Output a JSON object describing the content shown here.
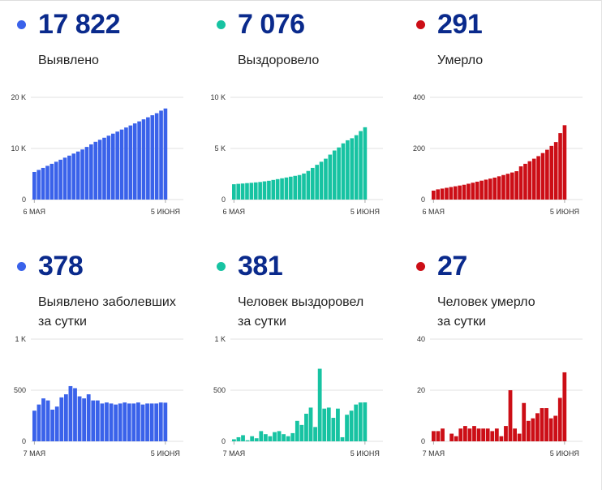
{
  "panels": [
    {
      "value": "17 822",
      "label_lines": [
        "Выявлено"
      ],
      "color": "#3a62ea",
      "chart_data": {
        "type": "bar",
        "title": "",
        "xlabel": "",
        "ylabel": "",
        "ylim": [
          0,
          20000
        ],
        "y_ticks": [
          0,
          10000,
          20000
        ],
        "y_tick_labels": [
          "0",
          "10 K",
          "20 K"
        ],
        "x_tick_labels": [
          "6 МАЯ",
          "5 ИЮНЯ"
        ],
        "x_tick_positions": [
          0,
          30
        ],
        "values": [
          5400,
          5800,
          6200,
          6600,
          7000,
          7400,
          7800,
          8200,
          8600,
          9000,
          9400,
          9800,
          10300,
          10800,
          11300,
          11700,
          12100,
          12500,
          12900,
          13300,
          13700,
          14100,
          14500,
          14900,
          15300,
          15700,
          16100,
          16500,
          16900,
          17400,
          17822
        ]
      }
    },
    {
      "value": "7 076",
      "label_lines": [
        "Выздоровело"
      ],
      "color": "#17c3a2",
      "chart_data": {
        "type": "bar",
        "title": "",
        "xlabel": "",
        "ylabel": "",
        "ylim": [
          0,
          10000
        ],
        "y_ticks": [
          0,
          5000,
          10000
        ],
        "y_tick_labels": [
          "0",
          "5 K",
          "10 K"
        ],
        "x_tick_labels": [
          "6 МАЯ",
          "5 ИЮНЯ"
        ],
        "x_tick_positions": [
          0,
          30
        ],
        "values": [
          1500,
          1540,
          1570,
          1610,
          1640,
          1680,
          1720,
          1780,
          1840,
          1920,
          2000,
          2080,
          2160,
          2240,
          2320,
          2400,
          2550,
          2800,
          3100,
          3400,
          3700,
          4000,
          4400,
          4800,
          5100,
          5500,
          5800,
          6000,
          6300,
          6700,
          7076
        ]
      }
    },
    {
      "value": "291",
      "label_lines": [
        "Умерло"
      ],
      "color": "#cc0e16",
      "chart_data": {
        "type": "bar",
        "title": "",
        "xlabel": "",
        "ylabel": "",
        "ylim": [
          0,
          400
        ],
        "y_ticks": [
          0,
          200,
          400
        ],
        "y_tick_labels": [
          "0",
          "200",
          "400"
        ],
        "x_tick_labels": [
          "6 МАЯ",
          "5 ИЮНЯ"
        ],
        "x_tick_positions": [
          0,
          30
        ],
        "values": [
          35,
          40,
          43,
          46,
          49,
          52,
          55,
          58,
          62,
          66,
          70,
          74,
          78,
          82,
          86,
          91,
          96,
          101,
          106,
          111,
          130,
          140,
          150,
          160,
          170,
          182,
          195,
          210,
          225,
          260,
          291
        ]
      }
    },
    {
      "value": "378",
      "label_lines": [
        "Выявлено заболевших",
        "за сутки"
      ],
      "color": "#3a62ea",
      "chart_data": {
        "type": "bar",
        "title": "",
        "xlabel": "",
        "ylabel": "",
        "ylim": [
          0,
          1000
        ],
        "y_ticks": [
          0,
          500,
          1000
        ],
        "y_tick_labels": [
          "0",
          "500",
          "1 K"
        ],
        "x_tick_labels": [
          "7 МАЯ",
          "5 ИЮНЯ"
        ],
        "x_tick_positions": [
          0,
          29
        ],
        "values": [
          300,
          360,
          420,
          400,
          310,
          340,
          430,
          460,
          540,
          520,
          440,
          420,
          460,
          400,
          400,
          370,
          380,
          370,
          360,
          370,
          380,
          370,
          370,
          380,
          360,
          370,
          370,
          370,
          380,
          378
        ]
      }
    },
    {
      "value": "381",
      "label_lines": [
        "Человек выздоровел",
        "за сутки"
      ],
      "color": "#17c3a2",
      "chart_data": {
        "type": "bar",
        "title": "",
        "xlabel": "",
        "ylabel": "",
        "ylim": [
          0,
          1000
        ],
        "y_ticks": [
          0,
          500,
          1000
        ],
        "y_tick_labels": [
          "0",
          "500",
          "1 K"
        ],
        "x_tick_labels": [
          "7 МАЯ",
          "5 ИЮНЯ"
        ],
        "x_tick_positions": [
          0,
          29
        ],
        "values": [
          20,
          40,
          60,
          10,
          50,
          30,
          100,
          70,
          50,
          90,
          100,
          70,
          50,
          80,
          200,
          160,
          270,
          330,
          140,
          710,
          320,
          330,
          230,
          320,
          40,
          260,
          300,
          360,
          380,
          381
        ]
      }
    },
    {
      "value": "27",
      "label_lines": [
        "Человек умерло",
        "за сутки"
      ],
      "color": "#cc0e16",
      "chart_data": {
        "type": "bar",
        "title": "",
        "xlabel": "",
        "ylabel": "",
        "ylim": [
          0,
          40
        ],
        "y_ticks": [
          0,
          20,
          40
        ],
        "y_tick_labels": [
          "0",
          "20",
          "40"
        ],
        "x_tick_labels": [
          "7 МАЯ",
          "5 ИЮНЯ"
        ],
        "x_tick_positions": [
          0,
          29
        ],
        "values": [
          4,
          4,
          5,
          0,
          3,
          2,
          5,
          6,
          5,
          6,
          5,
          5,
          5,
          4,
          5,
          2,
          6,
          20,
          5,
          3,
          15,
          8,
          9,
          11,
          13,
          13,
          9,
          10,
          17,
          27
        ]
      }
    }
  ]
}
